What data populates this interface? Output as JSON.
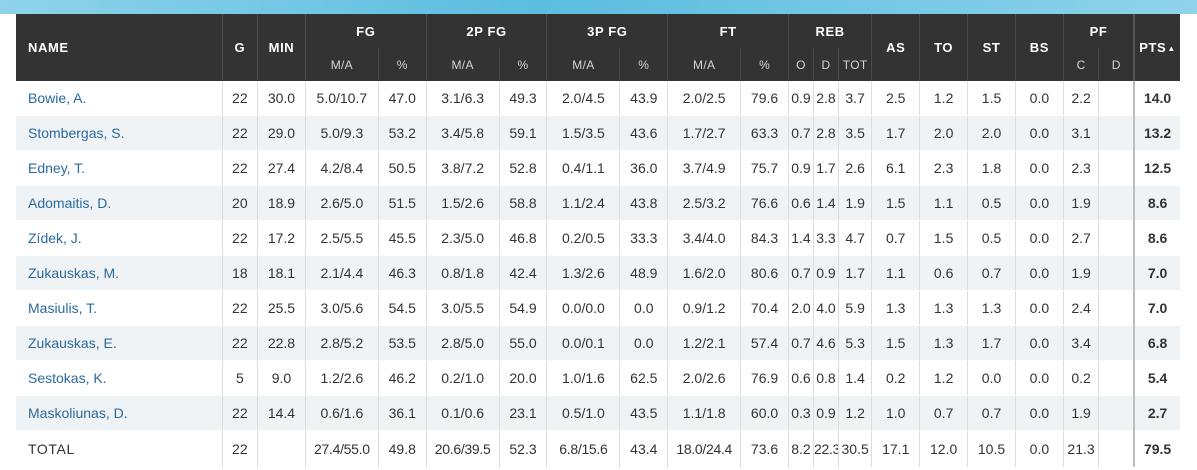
{
  "header": {
    "name": "NAME",
    "g": "G",
    "min": "MIN",
    "fg": "FG",
    "fg2": "2P FG",
    "fg3": "3P FG",
    "ft": "FT",
    "reb": "REB",
    "as": "AS",
    "to": "TO",
    "st": "ST",
    "bs": "BS",
    "pf": "PF",
    "pts": "PTS",
    "sort_icon": "sort-descending-triangle-icon",
    "ma": "M/A",
    "pct": "%",
    "reb_o": "O",
    "reb_d": "D",
    "reb_tot": "TOT",
    "pf_c": "C",
    "pf_d": "D"
  },
  "players": [
    {
      "name": "Bowie, A.",
      "g": "22",
      "min": "30.0",
      "fg_ma": "5.0/10.7",
      "fg_pct": "47.0",
      "fg2_ma": "3.1/6.3",
      "fg2_pct": "49.3",
      "fg3_ma": "2.0/4.5",
      "fg3_pct": "43.9",
      "ft_ma": "2.0/2.5",
      "ft_pct": "79.6",
      "reb_o": "0.9",
      "reb_d": "2.8",
      "reb_tot": "3.7",
      "as": "2.5",
      "to": "1.2",
      "st": "1.5",
      "bs": "0.0",
      "pf_c": "2.2",
      "pf_d": "",
      "pts": "14.0"
    },
    {
      "name": "Stombergas, S.",
      "g": "22",
      "min": "29.0",
      "fg_ma": "5.0/9.3",
      "fg_pct": "53.2",
      "fg2_ma": "3.4/5.8",
      "fg2_pct": "59.1",
      "fg3_ma": "1.5/3.5",
      "fg3_pct": "43.6",
      "ft_ma": "1.7/2.7",
      "ft_pct": "63.3",
      "reb_o": "0.7",
      "reb_d": "2.8",
      "reb_tot": "3.5",
      "as": "1.7",
      "to": "2.0",
      "st": "2.0",
      "bs": "0.0",
      "pf_c": "3.1",
      "pf_d": "",
      "pts": "13.2"
    },
    {
      "name": "Edney, T.",
      "g": "22",
      "min": "27.4",
      "fg_ma": "4.2/8.4",
      "fg_pct": "50.5",
      "fg2_ma": "3.8/7.2",
      "fg2_pct": "52.8",
      "fg3_ma": "0.4/1.1",
      "fg3_pct": "36.0",
      "ft_ma": "3.7/4.9",
      "ft_pct": "75.7",
      "reb_o": "0.9",
      "reb_d": "1.7",
      "reb_tot": "2.6",
      "as": "6.1",
      "to": "2.3",
      "st": "1.8",
      "bs": "0.0",
      "pf_c": "2.3",
      "pf_d": "",
      "pts": "12.5"
    },
    {
      "name": "Adomaitis, D.",
      "g": "20",
      "min": "18.9",
      "fg_ma": "2.6/5.0",
      "fg_pct": "51.5",
      "fg2_ma": "1.5/2.6",
      "fg2_pct": "58.8",
      "fg3_ma": "1.1/2.4",
      "fg3_pct": "43.8",
      "ft_ma": "2.5/3.2",
      "ft_pct": "76.6",
      "reb_o": "0.6",
      "reb_d": "1.4",
      "reb_tot": "1.9",
      "as": "1.5",
      "to": "1.1",
      "st": "0.5",
      "bs": "0.0",
      "pf_c": "1.9",
      "pf_d": "",
      "pts": "8.6"
    },
    {
      "name": "Zídek, J.",
      "g": "22",
      "min": "17.2",
      "fg_ma": "2.5/5.5",
      "fg_pct": "45.5",
      "fg2_ma": "2.3/5.0",
      "fg2_pct": "46.8",
      "fg3_ma": "0.2/0.5",
      "fg3_pct": "33.3",
      "ft_ma": "3.4/4.0",
      "ft_pct": "84.3",
      "reb_o": "1.4",
      "reb_d": "3.3",
      "reb_tot": "4.7",
      "as": "0.7",
      "to": "1.5",
      "st": "0.5",
      "bs": "0.0",
      "pf_c": "2.7",
      "pf_d": "",
      "pts": "8.6"
    },
    {
      "name": "Zukauskas, M.",
      "g": "18",
      "min": "18.1",
      "fg_ma": "2.1/4.4",
      "fg_pct": "46.3",
      "fg2_ma": "0.8/1.8",
      "fg2_pct": "42.4",
      "fg3_ma": "1.3/2.6",
      "fg3_pct": "48.9",
      "ft_ma": "1.6/2.0",
      "ft_pct": "80.6",
      "reb_o": "0.7",
      "reb_d": "0.9",
      "reb_tot": "1.7",
      "as": "1.1",
      "to": "0.6",
      "st": "0.7",
      "bs": "0.0",
      "pf_c": "1.9",
      "pf_d": "",
      "pts": "7.0"
    },
    {
      "name": "Masiulis, T.",
      "g": "22",
      "min": "25.5",
      "fg_ma": "3.0/5.6",
      "fg_pct": "54.5",
      "fg2_ma": "3.0/5.5",
      "fg2_pct": "54.9",
      "fg3_ma": "0.0/0.0",
      "fg3_pct": "0.0",
      "ft_ma": "0.9/1.2",
      "ft_pct": "70.4",
      "reb_o": "2.0",
      "reb_d": "4.0",
      "reb_tot": "5.9",
      "as": "1.3",
      "to": "1.3",
      "st": "1.3",
      "bs": "0.0",
      "pf_c": "2.4",
      "pf_d": "",
      "pts": "7.0"
    },
    {
      "name": "Zukauskas, E.",
      "g": "22",
      "min": "22.8",
      "fg_ma": "2.8/5.2",
      "fg_pct": "53.5",
      "fg2_ma": "2.8/5.0",
      "fg2_pct": "55.0",
      "fg3_ma": "0.0/0.1",
      "fg3_pct": "0.0",
      "ft_ma": "1.2/2.1",
      "ft_pct": "57.4",
      "reb_o": "0.7",
      "reb_d": "4.6",
      "reb_tot": "5.3",
      "as": "1.5",
      "to": "1.3",
      "st": "1.7",
      "bs": "0.0",
      "pf_c": "3.4",
      "pf_d": "",
      "pts": "6.8"
    },
    {
      "name": "Sestokas, K.",
      "g": "5",
      "min": "9.0",
      "fg_ma": "1.2/2.6",
      "fg_pct": "46.2",
      "fg2_ma": "0.2/1.0",
      "fg2_pct": "20.0",
      "fg3_ma": "1.0/1.6",
      "fg3_pct": "62.5",
      "ft_ma": "2.0/2.6",
      "ft_pct": "76.9",
      "reb_o": "0.6",
      "reb_d": "0.8",
      "reb_tot": "1.4",
      "as": "0.2",
      "to": "1.2",
      "st": "0.0",
      "bs": "0.0",
      "pf_c": "0.2",
      "pf_d": "",
      "pts": "5.4"
    },
    {
      "name": "Maskoliunas, D.",
      "g": "22",
      "min": "14.4",
      "fg_ma": "0.6/1.6",
      "fg_pct": "36.1",
      "fg2_ma": "0.1/0.6",
      "fg2_pct": "23.1",
      "fg3_ma": "0.5/1.0",
      "fg3_pct": "43.5",
      "ft_ma": "1.1/1.8",
      "ft_pct": "60.0",
      "reb_o": "0.3",
      "reb_d": "0.9",
      "reb_tot": "1.2",
      "as": "1.0",
      "to": "0.7",
      "st": "0.7",
      "bs": "0.0",
      "pf_c": "1.9",
      "pf_d": "",
      "pts": "2.7"
    }
  ],
  "total": {
    "name": "TOTAL",
    "g": "22",
    "min": "",
    "fg_ma": "27.4/55.0",
    "fg_pct": "49.8",
    "fg2_ma": "20.6/39.5",
    "fg2_pct": "52.3",
    "fg3_ma": "6.8/15.6",
    "fg3_pct": "43.4",
    "ft_ma": "18.0/24.4",
    "ft_pct": "73.6",
    "reb_o": "8.2",
    "reb_d": "22.3",
    "reb_tot": "30.5",
    "as": "17.1",
    "to": "12.0",
    "st": "10.5",
    "bs": "0.0",
    "pf_c": "21.3",
    "pf_d": "",
    "pts": "79.5"
  }
}
